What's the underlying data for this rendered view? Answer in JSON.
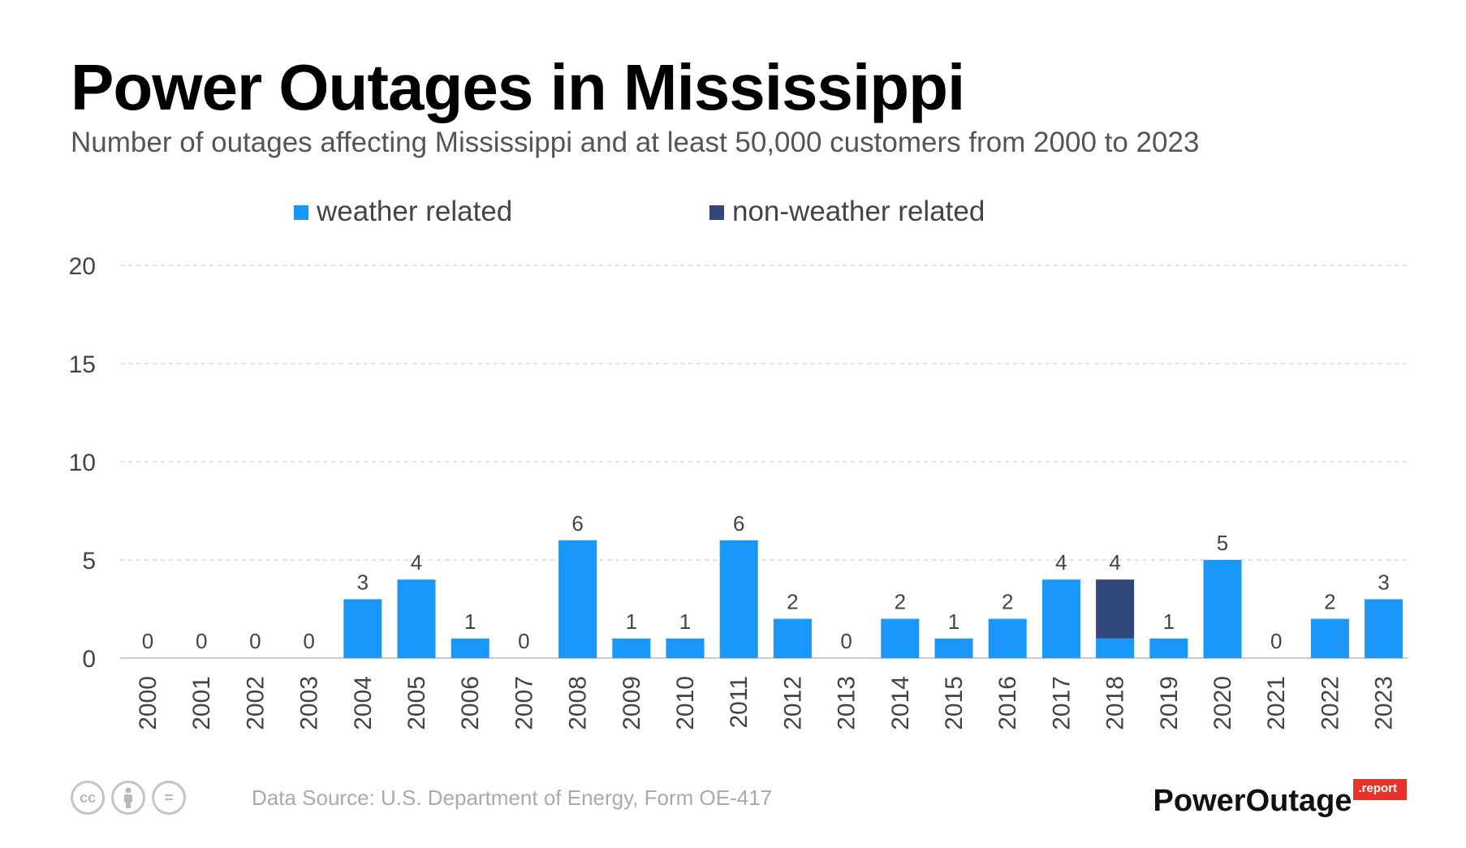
{
  "header": {
    "title": "Power Outages in Mississippi",
    "subtitle": "Number of outages affecting Mississippi and at least 50,000 customers from 2000 to 2023"
  },
  "chart_data": {
    "type": "bar",
    "stacked": true,
    "title": "Power Outages in Mississippi",
    "xlabel": "",
    "ylabel": "",
    "ylim": [
      0,
      20
    ],
    "yticks": [
      0,
      5,
      10,
      15,
      20
    ],
    "grid": true,
    "legend_position": "top-center",
    "categories": [
      "2000",
      "2001",
      "2002",
      "2003",
      "2004",
      "2005",
      "2006",
      "2007",
      "2008",
      "2009",
      "2010",
      "2011",
      "2012",
      "2013",
      "2014",
      "2015",
      "2016",
      "2017",
      "2018",
      "2019",
      "2020",
      "2021",
      "2022",
      "2023"
    ],
    "series": [
      {
        "name": "weather related",
        "color": "#1a97fa",
        "values": [
          0,
          0,
          0,
          0,
          3,
          4,
          1,
          0,
          6,
          1,
          1,
          6,
          2,
          0,
          2,
          1,
          2,
          4,
          1,
          1,
          5,
          0,
          2,
          3
        ]
      },
      {
        "name": "non-weather related",
        "color": "#31467a",
        "values": [
          0,
          0,
          0,
          0,
          0,
          0,
          0,
          0,
          0,
          0,
          0,
          0,
          0,
          0,
          0,
          0,
          0,
          0,
          3,
          0,
          0,
          0,
          0,
          0
        ]
      }
    ],
    "totals": [
      0,
      0,
      0,
      0,
      3,
      4,
      1,
      0,
      6,
      1,
      1,
      6,
      2,
      0,
      2,
      1,
      2,
      4,
      4,
      1,
      5,
      0,
      2,
      3
    ]
  },
  "footer": {
    "license_icons": [
      {
        "name": "cc-icon",
        "glyph": "cc"
      },
      {
        "name": "attribution-icon",
        "glyph": ""
      },
      {
        "name": "no-derivatives-icon",
        "glyph": "="
      }
    ],
    "source": "Data Source: U.S. Department of Energy, Form OE-417",
    "brand_name": "PowerOutage",
    "brand_tag": ".report"
  }
}
